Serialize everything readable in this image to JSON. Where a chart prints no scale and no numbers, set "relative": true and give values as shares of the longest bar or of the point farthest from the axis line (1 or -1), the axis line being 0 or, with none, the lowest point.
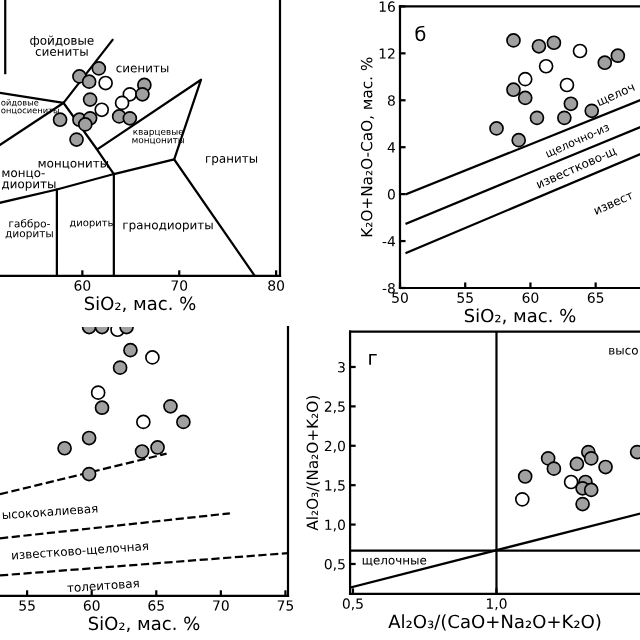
{
  "chart_data": [
    {
      "type": "scatter",
      "relative": true,
      "tick_labels": "x",
      "xlabel": "SiO₂, мас. %",
      "xlim": [
        51.5,
        80.4
      ],
      "xticks": [
        60,
        70,
        80
      ],
      "series": [
        {
          "marker": "circle",
          "color": "#a0a0a0",
          "x": [
            61.7,
            59.7,
            60.7,
            66.4,
            66.2,
            60.8,
            57.7,
            59.7,
            60.8,
            60.3,
            63.8,
            64.9,
            59.4
          ],
          "values": [
            0.752,
            0.723,
            0.704,
            0.692,
            0.658,
            0.639,
            0.566,
            0.566,
            0.571,
            0.549,
            0.578,
            0.571,
            0.494
          ]
        },
        {
          "marker": "circle",
          "color": "#ffffff",
          "x": [
            62.4,
            64.9,
            62.0,
            64.1
          ],
          "values": [
            0.699,
            0.658,
            0.602,
            0.627
          ]
        },
        {
          "type": "line",
          "color": "#000000",
          "x": [
            52.04,
            52.04
          ],
          "values": [
            1,
            0.735
          ]
        },
        {
          "type": "line",
          "color": "#000000",
          "x": [
            51.5,
            58.06,
            63.11
          ],
          "values": [
            0.663,
            0.627,
            0.855
          ]
        },
        {
          "type": "line",
          "color": "#000000",
          "x": [
            51.5,
            58.06
          ],
          "values": [
            0.475,
            0.627
          ]
        },
        {
          "type": "line",
          "color": "#000000",
          "x": [
            58.06,
            61.52,
            63.25,
            69.48,
            72.25,
            61.52
          ],
          "values": [
            0.627,
            0.458,
            0.369,
            0.422,
            0.711,
            0.458
          ]
        },
        {
          "type": "line",
          "color": "#000000",
          "x": [
            51.5,
            57.37,
            63.25
          ],
          "values": [
            0.265,
            0.313,
            0.369
          ]
        },
        {
          "type": "line",
          "color": "#000000",
          "x": [
            57.37,
            57.37
          ],
          "values": [
            0.313,
            0
          ]
        },
        {
          "type": "line",
          "color": "#000000",
          "x": [
            63.25,
            63.25
          ],
          "values": [
            0.369,
            0
          ]
        },
        {
          "type": "line",
          "color": "#000000",
          "x": [
            69.48,
            77.79
          ],
          "values": [
            0.422,
            0
          ]
        }
      ],
      "annotations": [
        "фойдовые\nсиениты",
        "сиениты",
        "ойдовые\nонцосиениты",
        "монцониты",
        "кварцевые\nмонцониты",
        "граниты",
        "монцо-\nдиориты",
        "габбро-\nдиориты",
        "диориты",
        "гранодиориты"
      ]
    },
    {
      "type": "scatter",
      "xlabel": "SiO₂, мас. %",
      "ylabel": "K₂O+Na₂O-CaO, мас. %",
      "xlim": [
        50,
        68.4
      ],
      "xticks": [
        50,
        55,
        60,
        65
      ],
      "ylim": [
        -8,
        16
      ],
      "yticks": [
        -8,
        -4,
        0,
        4,
        8,
        12,
        16
      ],
      "series": [
        {
          "marker": "circle",
          "color": "#a0a0a0",
          "x": [
            58.7,
            60.65,
            61.8,
            58.7,
            59.6,
            57.4,
            59.1,
            60.5,
            62.6,
            63.1,
            64.7,
            65.7,
            66.7
          ],
          "values": [
            13.1,
            12.6,
            12.9,
            8.9,
            8.2,
            5.6,
            4.6,
            6.5,
            6.5,
            7.7,
            7.1,
            11.2,
            11.8
          ]
        },
        {
          "marker": "circle",
          "color": "#ffffff",
          "x": [
            63.8,
            61.2,
            59.6,
            62.8
          ],
          "values": [
            12.2,
            10.9,
            9.8,
            9.3
          ]
        },
        {
          "type": "line",
          "color": "#000000",
          "x": [
            50.5,
            68.4
          ],
          "values": [
            0,
            8.0
          ]
        },
        {
          "type": "line",
          "color": "#000000",
          "x": [
            50.5,
            68.4
          ],
          "values": [
            -2.5,
            5.7
          ]
        },
        {
          "type": "line",
          "color": "#000000",
          "x": [
            50.5,
            68.4
          ],
          "values": [
            -5,
            3.4
          ]
        }
      ],
      "annotations": [
        "б",
        "щелоч",
        "щелочно-из",
        "известково-щ",
        "извест"
      ]
    },
    {
      "type": "scatter",
      "relative": true,
      "tick_labels": "x",
      "xlabel": "SiO₂, мас. %",
      "xlim": [
        52.9,
        75.2
      ],
      "xticks": [
        55,
        60,
        65,
        70,
        75
      ],
      "series": [
        {
          "marker": "circle",
          "color": "#a0a0a0",
          "x": [
            59.8,
            60.8,
            62.7,
            63.0,
            62.2,
            60.8,
            66.1,
            67.1,
            59.8,
            57.9,
            63.9,
            65.1,
            59.8
          ],
          "values": [
            1.0,
            1.0,
            1.0,
            0.914,
            0.849,
            0.7,
            0.705,
            0.647,
            0.587,
            0.549,
            0.537,
            0.552,
            0.453
          ]
        },
        {
          "marker": "circle",
          "color": "#ffffff",
          "x": [
            62.0,
            64.7,
            60.5,
            64.0
          ],
          "values": [
            0.99,
            0.887,
            0.756,
            0.647
          ]
        },
        {
          "type": "line",
          "line_style": "dashed",
          "color": "#000000",
          "x": [
            52.9,
            65.8
          ],
          "values": [
            0.378,
            0.529
          ]
        },
        {
          "type": "line",
          "line_style": "dashed",
          "color": "#000000",
          "x": [
            52.9,
            70.7
          ],
          "values": [
            0.214,
            0.307
          ]
        },
        {
          "type": "line",
          "line_style": "dashed",
          "color": "#000000",
          "x": [
            52.9,
            75.2
          ],
          "values": [
            0.076,
            0.159
          ]
        }
      ],
      "annotations": [
        "ысококалиевая",
        "известково-щелочная",
        "толеитовая"
      ]
    },
    {
      "type": "scatter",
      "xlabel": "Al₂O₃/(CaO+Na₂O+K₂O)",
      "ylabel": "Al₂O₃/(Na₂O+K₂O)",
      "xlim": [
        0.49,
        1.5
      ],
      "xticks": [
        {
          "value": 0.5,
          "label": "0,5"
        },
        {
          "value": 1.0,
          "label": "1,0"
        }
      ],
      "ylim": [
        0.12,
        3.45
      ],
      "yticks": [
        {
          "value": 0.5,
          "label": "0,5"
        },
        {
          "value": 1.0,
          "label": "1,0"
        },
        {
          "value": 1.5,
          "label": "1,5"
        },
        {
          "value": 2.0,
          "label": "2,0"
        },
        {
          "value": 2.5,
          "label": "2,5"
        },
        3
      ],
      "series": [
        {
          "marker": "circle",
          "color": "#a0a0a0",
          "x": [
            1.1,
            1.18,
            1.2,
            1.28,
            1.32,
            1.33,
            1.31,
            1.3,
            1.33,
            1.3,
            1.38,
            1.49
          ],
          "values": [
            1.61,
            1.84,
            1.71,
            1.77,
            1.92,
            1.84,
            1.54,
            1.46,
            1.44,
            1.26,
            1.73,
            1.92
          ]
        },
        {
          "marker": "circle",
          "color": "#ffffff",
          "x": [
            1.09,
            1.26
          ],
          "values": [
            1.32,
            1.54
          ]
        },
        {
          "type": "line",
          "color": "#000000",
          "x": [
            1.0,
            1.0
          ],
          "values": [
            0.12,
            3.45
          ]
        },
        {
          "type": "line",
          "color": "#000000",
          "x": [
            0.49,
            1.5
          ],
          "values": [
            0.67,
            0.67
          ]
        },
        {
          "type": "line",
          "color": "#000000",
          "x": [
            0.49,
            1.5
          ],
          "values": [
            0.2,
            1.14
          ]
        }
      ],
      "annotations": [
        "г",
        "щелочные",
        "высо"
      ]
    }
  ]
}
